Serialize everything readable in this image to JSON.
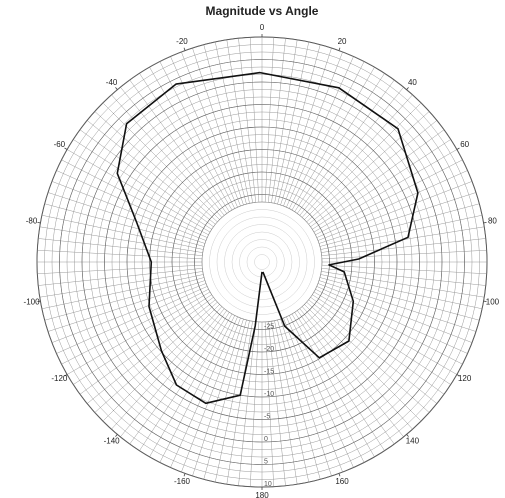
{
  "chart_data": {
    "type": "polar",
    "title": "Magnitude vs Angle",
    "x": [
      -180,
      -173.9,
      -170.7,
      -158.3,
      -145.2,
      -131.4,
      -111.5,
      -90,
      -72.5,
      -58.5,
      -44.4,
      -25.8,
      -0.6,
      23.8,
      45.6,
      66.1,
      80.4,
      88.2,
      92.5,
      96.9,
      113.3,
      132.3,
      149.1,
      160.5,
      175
    ],
    "values": [
      -37.8,
      -25.7,
      -10,
      -6.2,
      -6.7,
      -10.2,
      -13,
      -15.4,
      -10.8,
      -2.3,
      3,
      3.9,
      2.1,
      2.3,
      2.3,
      -2.1,
      -7.1,
      -18.5,
      -25.1,
      -21.6,
      -17.9,
      -13.9,
      -15.2,
      -24.9,
      -37.8
    ],
    "color": "#111111",
    "rlim": [
      -40,
      10
    ],
    "rticks": [
      -25,
      -20,
      -15,
      -10,
      -5,
      0,
      5,
      10
    ],
    "thetaticks": [
      -160,
      -140,
      -120,
      -100,
      -80,
      -60,
      -40,
      -20,
      0,
      20,
      40,
      60,
      80,
      100,
      120,
      140,
      160,
      180
    ],
    "grid": true
  }
}
